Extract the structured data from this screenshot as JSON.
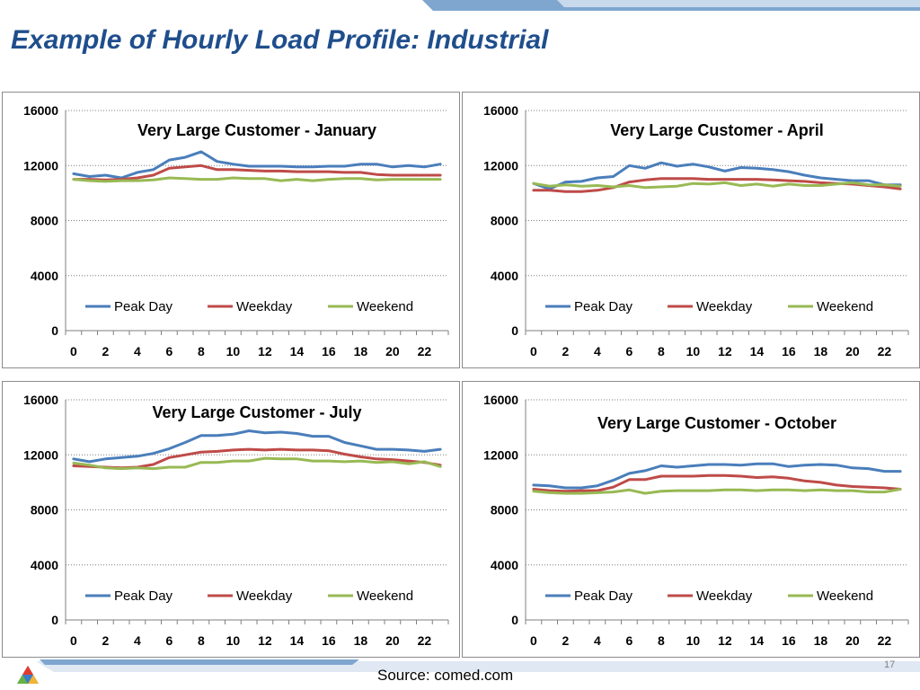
{
  "slide": {
    "title": "Example of Hourly Load Profile:  Industrial",
    "source": "Source:  comed.com",
    "page_number": "17"
  },
  "colors": {
    "title": "#1f4e8c",
    "peak_day": "#4a7ebb",
    "weekday": "#be4b48",
    "weekend": "#98b954",
    "gridline": "#7f7f7f",
    "band_dark": "#7ea6cf",
    "band_light": "#c9d9ec"
  },
  "icons": {
    "logo": "comed-logo-icon"
  },
  "chart_data": [
    {
      "type": "line",
      "title": "Very Large  Customer - January",
      "x": [
        0,
        1,
        2,
        3,
        4,
        5,
        6,
        7,
        8,
        9,
        10,
        11,
        12,
        13,
        14,
        15,
        16,
        17,
        18,
        19,
        20,
        21,
        22,
        23
      ],
      "xticks": [
        "0",
        "2",
        "4",
        "6",
        "8",
        "10",
        "12",
        "14",
        "16",
        "18",
        "20",
        "22"
      ],
      "yticks": [
        "16000",
        "12000",
        "8000",
        "4000",
        "0"
      ],
      "ylim": [
        0,
        16000
      ],
      "grid": true,
      "legend": "bottom",
      "series": [
        {
          "name": "Peak Day",
          "values": [
            11400,
            11200,
            11300,
            11100,
            11500,
            11700,
            12400,
            12600,
            13000,
            12300,
            12100,
            11950,
            11950,
            11950,
            11900,
            11900,
            11950,
            11950,
            12100,
            12100,
            11900,
            12000,
            11900,
            12100
          ]
        },
        {
          "name": "Weekday",
          "values": [
            11000,
            11000,
            10950,
            11000,
            11100,
            11300,
            11800,
            11900,
            12000,
            11700,
            11700,
            11650,
            11600,
            11600,
            11550,
            11550,
            11550,
            11500,
            11500,
            11350,
            11300,
            11300,
            11300,
            11300
          ]
        },
        {
          "name": "Weekend",
          "values": [
            11000,
            10900,
            10850,
            10900,
            10900,
            10950,
            11100,
            11050,
            11000,
            11000,
            11100,
            11050,
            11050,
            10900,
            11000,
            10900,
            11000,
            11050,
            11050,
            10950,
            11000,
            11000,
            11000,
            11000
          ]
        }
      ]
    },
    {
      "type": "line",
      "title": "Very Large  Customer - April",
      "x": [
        0,
        1,
        2,
        3,
        4,
        5,
        6,
        7,
        8,
        9,
        10,
        11,
        12,
        13,
        14,
        15,
        16,
        17,
        18,
        19,
        20,
        21,
        22,
        23
      ],
      "xticks": [
        "0",
        "2",
        "4",
        "6",
        "8",
        "10",
        "12",
        "14",
        "16",
        "18",
        "20",
        "22"
      ],
      "yticks": [
        "16000",
        "12000",
        "8000",
        "4000",
        "0"
      ],
      "ylim": [
        0,
        16000
      ],
      "grid": true,
      "legend": "bottom",
      "series": [
        {
          "name": "Peak Day",
          "values": [
            10700,
            10300,
            10800,
            10850,
            11100,
            11200,
            12000,
            11800,
            12200,
            11950,
            12100,
            11900,
            11600,
            11850,
            11800,
            11700,
            11550,
            11300,
            11100,
            11000,
            10900,
            10900,
            10600,
            10600
          ]
        },
        {
          "name": "Weekday",
          "values": [
            10200,
            10200,
            10100,
            10100,
            10200,
            10400,
            10800,
            10950,
            11050,
            11050,
            11050,
            11000,
            11000,
            11000,
            11000,
            10950,
            10900,
            10850,
            10750,
            10700,
            10650,
            10550,
            10450,
            10300
          ]
        },
        {
          "name": "Weekend",
          "values": [
            10700,
            10500,
            10600,
            10500,
            10550,
            10450,
            10550,
            10400,
            10450,
            10500,
            10700,
            10650,
            10750,
            10550,
            10650,
            10500,
            10650,
            10550,
            10550,
            10650,
            10750,
            10600,
            10600,
            10500
          ]
        }
      ]
    },
    {
      "type": "line",
      "title": "Very Large  Customer - July",
      "x": [
        0,
        1,
        2,
        3,
        4,
        5,
        6,
        7,
        8,
        9,
        10,
        11,
        12,
        13,
        14,
        15,
        16,
        17,
        18,
        19,
        20,
        21,
        22,
        23
      ],
      "xticks": [
        "0",
        "2",
        "4",
        "6",
        "8",
        "10",
        "12",
        "14",
        "16",
        "18",
        "20",
        "22"
      ],
      "yticks": [
        "16000",
        "12000",
        "8000",
        "4000",
        "0"
      ],
      "ylim": [
        0,
        16000
      ],
      "grid": true,
      "legend": "bottom",
      "series": [
        {
          "name": "Peak Day",
          "values": [
            11700,
            11500,
            11700,
            11800,
            11900,
            12100,
            12450,
            12900,
            13400,
            13400,
            13500,
            13750,
            13600,
            13650,
            13550,
            13350,
            13350,
            12900,
            12650,
            12400,
            12400,
            12350,
            12250,
            12400
          ]
        },
        {
          "name": "Weekday",
          "values": [
            11200,
            11150,
            11100,
            11050,
            11100,
            11300,
            11800,
            12000,
            12200,
            12250,
            12350,
            12400,
            12350,
            12400,
            12350,
            12350,
            12300,
            12050,
            11850,
            11700,
            11650,
            11550,
            11450,
            11250
          ]
        },
        {
          "name": "Weekend",
          "values": [
            11400,
            11250,
            11050,
            11000,
            11050,
            11000,
            11100,
            11100,
            11450,
            11450,
            11550,
            11550,
            11750,
            11700,
            11700,
            11550,
            11550,
            11500,
            11550,
            11450,
            11500,
            11350,
            11500,
            11150
          ]
        }
      ]
    },
    {
      "type": "line",
      "title": "Very Large  Customer - October",
      "x": [
        0,
        1,
        2,
        3,
        4,
        5,
        6,
        7,
        8,
        9,
        10,
        11,
        12,
        13,
        14,
        15,
        16,
        17,
        18,
        19,
        20,
        21,
        22,
        23
      ],
      "xticks": [
        "0",
        "2",
        "4",
        "6",
        "8",
        "10",
        "12",
        "14",
        "16",
        "18",
        "20",
        "22"
      ],
      "yticks": [
        "16000",
        "12000",
        "8000",
        "4000",
        "0"
      ],
      "ylim": [
        0,
        16000
      ],
      "grid": true,
      "legend": "bottom",
      "series": [
        {
          "name": "Peak Day",
          "values": [
            9800,
            9750,
            9600,
            9600,
            9750,
            10150,
            10650,
            10850,
            11200,
            11100,
            11200,
            11300,
            11300,
            11250,
            11350,
            11350,
            11150,
            11250,
            11300,
            11250,
            11050,
            11000,
            10800,
            10800
          ]
        },
        {
          "name": "Weekday",
          "values": [
            9500,
            9400,
            9350,
            9400,
            9400,
            9650,
            10200,
            10200,
            10450,
            10450,
            10450,
            10500,
            10500,
            10450,
            10350,
            10400,
            10300,
            10100,
            10000,
            9800,
            9700,
            9650,
            9600,
            9500
          ]
        },
        {
          "name": "Weekend",
          "values": [
            9350,
            9250,
            9200,
            9200,
            9250,
            9300,
            9450,
            9200,
            9350,
            9400,
            9400,
            9400,
            9450,
            9450,
            9400,
            9450,
            9450,
            9400,
            9450,
            9400,
            9400,
            9300,
            9300,
            9500
          ]
        }
      ]
    }
  ]
}
